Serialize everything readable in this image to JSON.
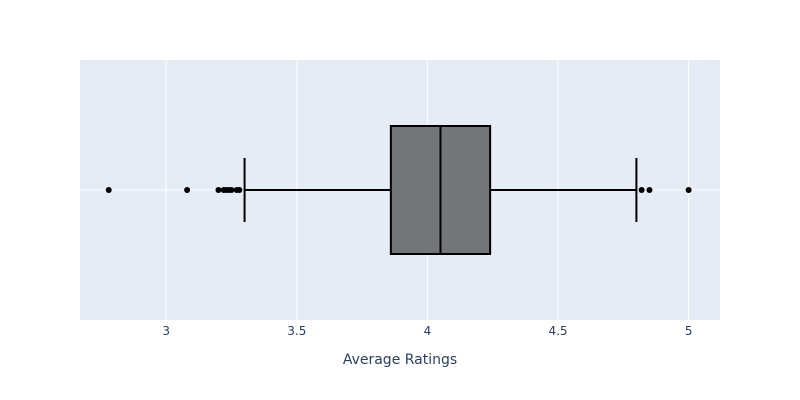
{
  "chart_data": {
    "type": "box",
    "title": "",
    "xlabel": "Average Ratings",
    "ylabel": "",
    "xlim": [
      2.67,
      5.12
    ],
    "xticks": [
      3,
      3.5,
      4,
      4.5,
      5
    ],
    "xtick_labels": [
      "3",
      "3.5",
      "4",
      "4.5",
      "5"
    ],
    "grid": true,
    "orientation": "horizontal",
    "box": {
      "q1": 3.86,
      "median": 4.05,
      "q3": 4.24,
      "lower_fence": 3.3,
      "upper_fence": 4.8
    },
    "outliers": [
      2.78,
      3.08,
      3.2,
      3.22,
      3.23,
      3.24,
      3.25,
      3.27,
      3.28,
      4.82,
      4.85,
      5.0
    ]
  },
  "colors": {
    "plot_background": "#e5ecf6",
    "grid": "#ffffff",
    "box_fill": "#737678",
    "box_line": "#000000",
    "outlier": "#000000",
    "text": "#2a3f5f"
  }
}
